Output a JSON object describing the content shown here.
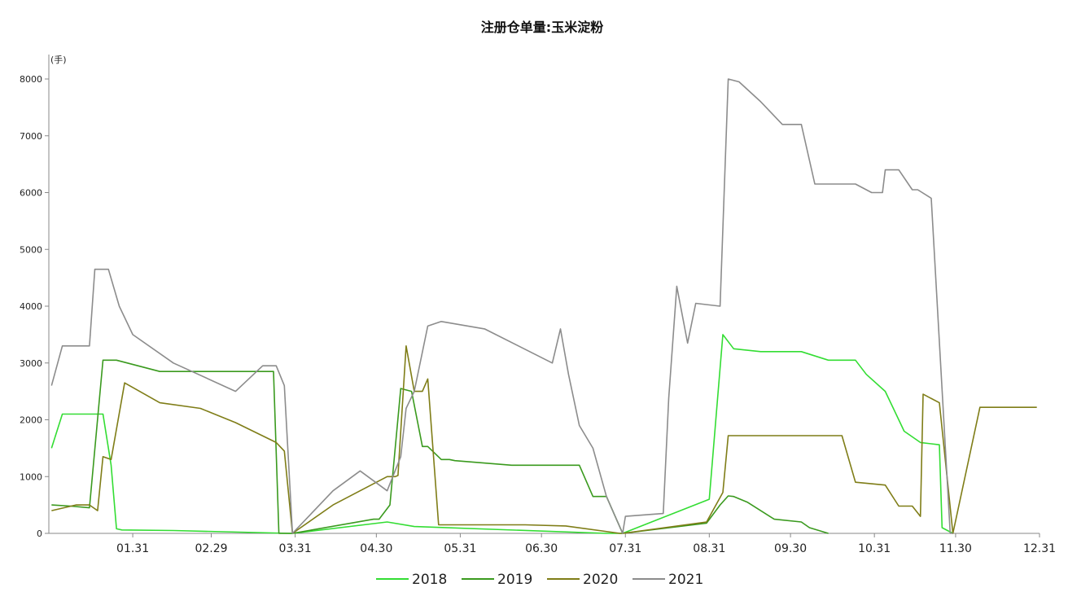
{
  "chart_data": {
    "type": "line",
    "title": "注册仓单量:玉米淀粉",
    "ylabel": "(手)",
    "xlabel": "",
    "ylim": [
      0,
      8000
    ],
    "x_domain": [
      "01.01",
      "12.31"
    ],
    "y_ticks": [
      "0",
      "1000",
      "2000",
      "3000",
      "4000",
      "5000",
      "6000",
      "7000",
      "8000"
    ],
    "y_tick_values": [
      0,
      1000,
      2000,
      3000,
      4000,
      5000,
      6000,
      7000,
      8000
    ],
    "x_ticks": [
      "01.31",
      "02.29",
      "03.31",
      "04.30",
      "05.31",
      "06.30",
      "07.31",
      "08.31",
      "09.30",
      "10.31",
      "11.30",
      "12.31"
    ],
    "x_tick_days": [
      31,
      60,
      91,
      121,
      152,
      182,
      213,
      244,
      274,
      305,
      335,
      366
    ],
    "legend_position": "bottom",
    "grid": false,
    "series": [
      {
        "name": "2018",
        "color": "#33dd33",
        "x": [
          "01.01",
          "01.05",
          "01.10",
          "01.20",
          "01.23",
          "01.25",
          "01.27",
          "02.15",
          "03.30",
          "03.31",
          "05.05",
          "05.15",
          "07.25",
          "07.31",
          "09.01",
          "09.06",
          "09.10",
          "09.20",
          "10.05",
          "10.15",
          "10.25",
          "10.29",
          "11.05",
          "11.10",
          "11.12",
          "11.18",
          "11.25",
          "11.26",
          "11.30"
        ],
        "values": [
          1500,
          2100,
          2100,
          2100,
          1200,
          80,
          60,
          50,
          0,
          0,
          200,
          120,
          0,
          0,
          600,
          3500,
          3250,
          3200,
          3200,
          3050,
          3050,
          2800,
          2500,
          2000,
          1800,
          1600,
          1560,
          100,
          0
        ]
      },
      {
        "name": "2019",
        "color": "#3a9a1e",
        "x": [
          "01.01",
          "01.08",
          "01.15",
          "01.20",
          "01.25",
          "02.10",
          "03.05",
          "03.24",
          "03.26",
          "03.31",
          "04.30",
          "05.02",
          "05.06",
          "05.10",
          "05.14",
          "05.18",
          "05.20",
          "05.25",
          "05.28",
          "05.30",
          "06.20",
          "07.15",
          "07.20",
          "07.25",
          "07.31",
          "08.31",
          "09.05",
          "09.08",
          "09.10",
          "09.15",
          "09.25",
          "10.05",
          "10.08",
          "10.15"
        ],
        "values": [
          500,
          480,
          450,
          3050,
          3050,
          2850,
          2850,
          2850,
          0,
          0,
          250,
          250,
          500,
          2550,
          2500,
          1530,
          1530,
          1300,
          1300,
          1280,
          1200,
          1200,
          650,
          650,
          0,
          180,
          500,
          660,
          650,
          550,
          250,
          200,
          100,
          0
        ]
      },
      {
        "name": "2020",
        "color": "#7f7d17",
        "x": [
          "01.01",
          "01.10",
          "01.15",
          "01.18",
          "01.20",
          "01.23",
          "01.28",
          "02.10",
          "02.25",
          "03.10",
          "03.25",
          "03.28",
          "03.31",
          "04.15",
          "05.05",
          "05.08",
          "05.09",
          "05.12",
          "05.15",
          "05.18",
          "05.20",
          "05.24",
          "06.25",
          "07.10",
          "07.30",
          "07.31",
          "08.31",
          "09.06",
          "09.08",
          "10.20",
          "10.25",
          "11.05",
          "11.10",
          "11.15",
          "11.18",
          "11.19",
          "11.25",
          "11.30",
          "12.10",
          "12.31"
        ],
        "values": [
          400,
          500,
          500,
          400,
          1350,
          1300,
          2650,
          2300,
          2200,
          1950,
          1600,
          1450,
          0,
          500,
          1000,
          1000,
          1020,
          3300,
          2500,
          2500,
          2720,
          150,
          150,
          130,
          0,
          0,
          200,
          720,
          1720,
          1720,
          900,
          850,
          480,
          480,
          300,
          2450,
          2300,
          0,
          2220,
          2220
        ]
      },
      {
        "name": "2021",
        "color": "#8c8c8c",
        "x": [
          "01.01",
          "01.05",
          "01.15",
          "01.17",
          "01.22",
          "01.26",
          "01.31",
          "02.15",
          "03.10",
          "03.20",
          "03.25",
          "03.28",
          "03.31",
          "04.15",
          "04.25",
          "05.05",
          "05.10",
          "05.12",
          "05.15",
          "05.20",
          "05.25",
          "06.10",
          "07.05",
          "07.08",
          "07.11",
          "07.15",
          "07.20",
          "07.25",
          "07.31",
          "08.01",
          "08.15",
          "08.17",
          "08.20",
          "08.24",
          "08.27",
          "09.05",
          "09.08",
          "09.12",
          "09.20",
          "09.28",
          "10.05",
          "10.10",
          "10.25",
          "10.31",
          "11.04",
          "11.05",
          "11.10",
          "11.15",
          "11.17",
          "11.22",
          "11.29",
          "11.30"
        ],
        "values": [
          2600,
          3300,
          3300,
          4650,
          4650,
          4000,
          3500,
          3000,
          2500,
          2950,
          2950,
          2600,
          0,
          750,
          1100,
          750,
          1350,
          2200,
          2500,
          3650,
          3730,
          3600,
          3000,
          3600,
          2800,
          1900,
          1500,
          650,
          0,
          300,
          350,
          2380,
          4350,
          3350,
          4050,
          4000,
          8000,
          7950,
          7600,
          7200,
          7200,
          6150,
          6150,
          6000,
          6000,
          6400,
          6400,
          6050,
          6050,
          5900,
          0,
          0
        ]
      }
    ]
  }
}
